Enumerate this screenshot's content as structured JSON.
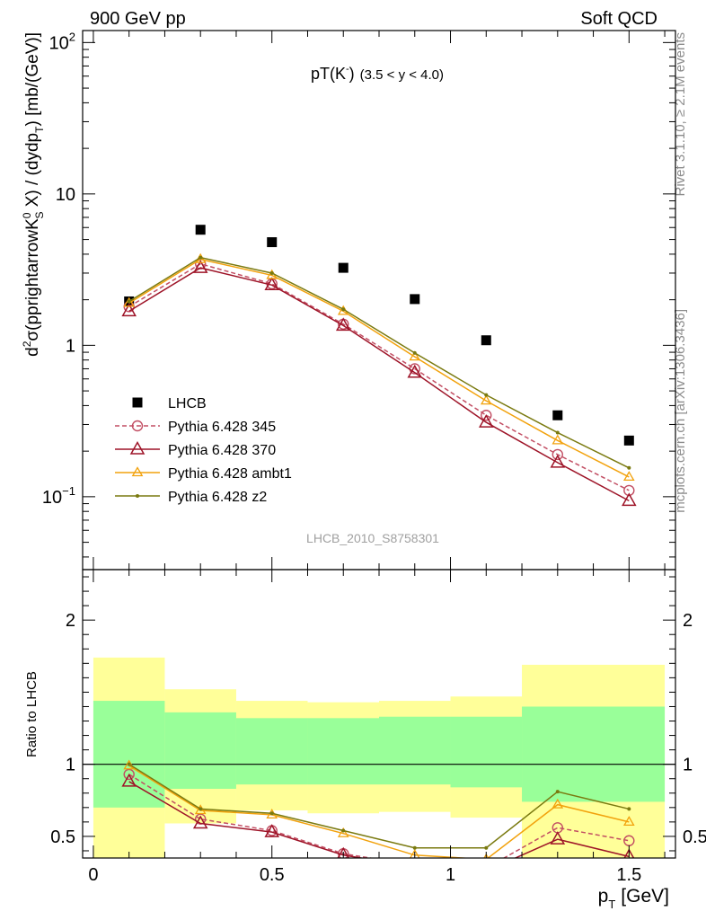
{
  "header": {
    "left": "900 GeV pp",
    "right": "Soft QCD"
  },
  "side": {
    "rivet": "Rivet 3.1.10, ≥ 2.1M events",
    "mcplots": "mcplots.cern.ch [arXiv:1306.3436]"
  },
  "watermark": "LHCB_2010_S8758301",
  "chart_data": [
    {
      "type": "scatter",
      "panel": "main",
      "title": "pT(Kˉ) (3.5 < y < 4.0)",
      "title_main": "pT",
      "title_particle": "(K",
      "title_sup": "-",
      "title_close": ")",
      "title_range": "(3.5 < y < 4.0)",
      "ylabel": "d²σ(pprightarrowK⁰S X) / (dydpT) [mb/(GeV)]",
      "ylabel_parts": {
        "d": "d",
        "two": "2",
        "sigma": "σ(pprightarrowK",
        "zero": "0",
        "S": "S",
        "mid": " X) / (dydp",
        "T": "T",
        "end": ") [mb/(GeV)]"
      },
      "yscale": "log",
      "ylim": [
        0.033,
        120
      ],
      "xlim": [
        -0.03,
        1.63
      ],
      "yticks": [
        {
          "value": 0.1,
          "base": "10",
          "exp": "−1"
        },
        {
          "value": 1,
          "base": "1",
          "exp": ""
        },
        {
          "value": 10,
          "base": "10",
          "exp": ""
        },
        {
          "value": 100,
          "base": "10",
          "exp": "2"
        }
      ],
      "x": [
        0.1,
        0.3,
        0.5,
        0.7,
        0.9,
        1.1,
        1.3,
        1.5
      ],
      "series": [
        {
          "name": "LHCB",
          "color": "#000000",
          "marker": "square",
          "values": [
            1.95,
            5.8,
            4.8,
            3.25,
            2.02,
            1.08,
            0.345,
            0.235
          ]
        },
        {
          "name": "Pythia 6.428 345",
          "color": "#c24e63",
          "marker": "circle",
          "dashed": true,
          "values": [
            1.8,
            3.45,
            2.55,
            1.38,
            0.7,
            0.345,
            0.19,
            0.11
          ]
        },
        {
          "name": "Pythia 6.428 370",
          "color": "#9e1428",
          "marker": "triangle",
          "values": [
            1.68,
            3.25,
            2.5,
            1.35,
            0.66,
            0.31,
            0.168,
            0.094
          ]
        },
        {
          "name": "Pythia 6.428 ambt1",
          "color": "#f2a20d",
          "marker": "triangle-small",
          "values": [
            1.9,
            3.7,
            2.9,
            1.68,
            0.84,
            0.43,
            0.235,
            0.135
          ]
        },
        {
          "name": "Pythia 6.428 z2",
          "color": "#7a7a10",
          "marker": "dot",
          "values": [
            1.95,
            3.8,
            3.0,
            1.73,
            0.89,
            0.47,
            0.265,
            0.155
          ]
        }
      ],
      "legend": "middle-left"
    },
    {
      "type": "line",
      "panel": "ratio",
      "ylabel": "Ratio to LHCB",
      "xlabel": "pT [GeV]",
      "xlabel_main": "p",
      "xlabel_sub": "T",
      "xlabel_unit": "[GeV]",
      "ylim": [
        0.35,
        2.35
      ],
      "xlim": [
        -0.03,
        1.63
      ],
      "xticks": [
        {
          "value": 0,
          "label": "0"
        },
        {
          "value": 0.5,
          "label": "0.5"
        },
        {
          "value": 1,
          "label": "1"
        },
        {
          "value": 1.5,
          "label": "1.5"
        }
      ],
      "yticks": [
        {
          "value": 0.5,
          "label": "0.5"
        },
        {
          "value": 1,
          "label": "1"
        },
        {
          "value": 2,
          "label": "2"
        }
      ],
      "bands": {
        "x_edges": [
          0.0,
          0.2,
          0.4,
          0.6,
          0.8,
          1.0,
          1.2,
          1.6
        ],
        "yellow_low": [
          0.31,
          0.59,
          0.68,
          0.66,
          0.67,
          0.63,
          0.24
        ],
        "yellow_high": [
          1.74,
          1.52,
          1.44,
          1.43,
          1.44,
          1.47,
          1.69
        ],
        "green_low": [
          0.7,
          0.83,
          0.86,
          0.86,
          0.86,
          0.84,
          0.74
        ],
        "green_high": [
          1.44,
          1.36,
          1.32,
          1.32,
          1.33,
          1.33,
          1.4
        ]
      },
      "x": [
        0.1,
        0.3,
        0.5,
        0.7,
        0.9,
        1.1,
        1.3,
        1.5
      ],
      "series": [
        {
          "name": "Pythia 6.428 345",
          "color": "#c24e63",
          "marker": "circle",
          "dashed": true,
          "values": [
            0.93,
            0.62,
            0.54,
            0.38,
            0.3,
            0.28,
            0.56,
            0.47
          ]
        },
        {
          "name": "Pythia 6.428 370",
          "color": "#9e1428",
          "marker": "triangle",
          "values": [
            0.88,
            0.59,
            0.53,
            0.37,
            0.29,
            0.26,
            0.48,
            0.36
          ]
        },
        {
          "name": "Pythia 6.428 ambt1",
          "color": "#f2a20d",
          "marker": "triangle-small",
          "values": [
            0.99,
            0.68,
            0.65,
            0.52,
            0.37,
            0.34,
            0.72,
            0.6
          ]
        },
        {
          "name": "Pythia 6.428 z2",
          "color": "#7a7a10",
          "marker": "dot",
          "values": [
            1.0,
            0.69,
            0.66,
            0.54,
            0.42,
            0.42,
            0.81,
            0.69
          ]
        }
      ]
    }
  ]
}
